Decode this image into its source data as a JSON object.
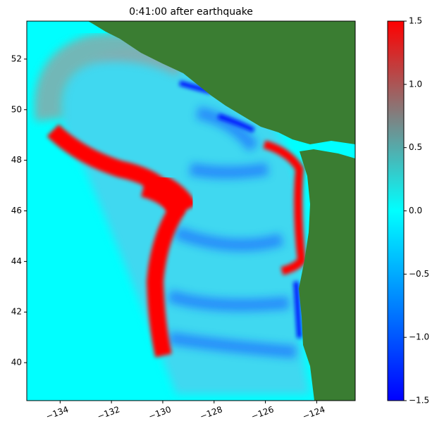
{
  "chart_data": {
    "type": "heatmap",
    "title": "0:41:00 after earthquake",
    "xlim": [
      -135.3,
      -122.5
    ],
    "ylim": [
      38.5,
      53.5
    ],
    "xticks": [
      {
        "value": -134,
        "label": "−134"
      },
      {
        "value": -132,
        "label": "−132"
      },
      {
        "value": -130,
        "label": "−130"
      },
      {
        "value": -128,
        "label": "−128"
      },
      {
        "value": -126,
        "label": "−126"
      },
      {
        "value": -124,
        "label": "−124"
      }
    ],
    "yticks": [
      40,
      42,
      44,
      46,
      48,
      50,
      52
    ],
    "colorbar": {
      "lim": [
        -1.5,
        1.5
      ],
      "ticks": [
        {
          "value": -1.5,
          "label": "−1.5"
        },
        {
          "value": -1.0,
          "label": "−1.0"
        },
        {
          "value": -0.5,
          "label": "−0.5"
        },
        {
          "value": 0.0,
          "label": "0.0"
        },
        {
          "value": 0.5,
          "label": "0.5"
        },
        {
          "value": 1.0,
          "label": "1.0"
        },
        {
          "value": 1.5,
          "label": "1.5"
        }
      ],
      "colors": [
        "#0000ff",
        "#0080ff",
        "#00ffff",
        "#808080",
        "#ff0000"
      ]
    },
    "land_color": "#3a7d32"
  }
}
